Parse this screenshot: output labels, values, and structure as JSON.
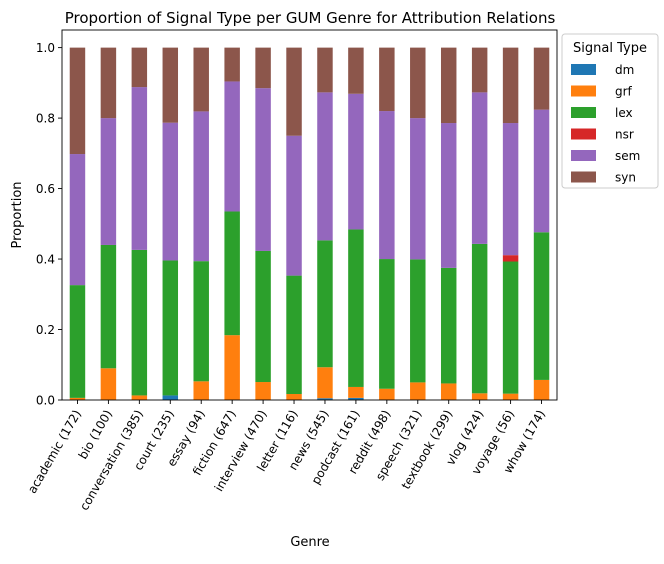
{
  "chart_data": {
    "type": "bar",
    "stacked": true,
    "title": "Proportion of Signal Type per GUM Genre for Attribution Relations",
    "xlabel": "Genre",
    "ylabel": "Proportion",
    "ylim": [
      0,
      1.05
    ],
    "yticks": [
      0.0,
      0.2,
      0.4,
      0.6,
      0.8,
      1.0
    ],
    "ytick_labels": [
      "0.0",
      "0.2",
      "0.4",
      "0.6",
      "0.8",
      "1.0"
    ],
    "grid": false,
    "legend_title": "Signal Type",
    "legend_position": "outside-top-right",
    "categories": [
      "academic (172)",
      "bio (100)",
      "conversation (385)",
      "court (235)",
      "essay (94)",
      "fiction (647)",
      "interview (470)",
      "letter (116)",
      "news (545)",
      "podcast (161)",
      "reddit (498)",
      "speech (321)",
      "textbook (299)",
      "vlog (424)",
      "voyage (56)",
      "whow (174)"
    ],
    "series": [
      {
        "name": "dm",
        "color": "#1f77b4",
        "values": [
          0.0,
          0.0,
          0.0,
          0.013,
          0.0,
          0.0,
          0.0,
          0.0,
          0.005,
          0.006,
          0.0,
          0.0,
          0.0,
          0.0,
          0.0,
          0.0
        ]
      },
      {
        "name": "grf",
        "color": "#ff7f0e",
        "values": [
          0.006,
          0.09,
          0.013,
          0.0,
          0.053,
          0.184,
          0.051,
          0.017,
          0.088,
          0.031,
          0.032,
          0.05,
          0.047,
          0.019,
          0.018,
          0.057
        ]
      },
      {
        "name": "lex",
        "color": "#2ca02c",
        "values": [
          0.32,
          0.35,
          0.413,
          0.383,
          0.341,
          0.351,
          0.372,
          0.336,
          0.36,
          0.447,
          0.368,
          0.349,
          0.328,
          0.424,
          0.375,
          0.419
        ]
      },
      {
        "name": "nsr",
        "color": "#d62728",
        "values": [
          0.0,
          0.0,
          0.0,
          0.0,
          0.0,
          0.0,
          0.0,
          0.0,
          0.0,
          0.0,
          0.0,
          0.0,
          0.0,
          0.0,
          0.018,
          0.0
        ]
      },
      {
        "name": "sem",
        "color": "#9467bd",
        "values": [
          0.372,
          0.36,
          0.462,
          0.391,
          0.425,
          0.369,
          0.462,
          0.397,
          0.42,
          0.385,
          0.42,
          0.401,
          0.411,
          0.43,
          0.375,
          0.348
        ]
      },
      {
        "name": "syn",
        "color": "#8c564b",
        "values": [
          0.302,
          0.2,
          0.112,
          0.213,
          0.181,
          0.096,
          0.115,
          0.25,
          0.127,
          0.131,
          0.18,
          0.2,
          0.214,
          0.127,
          0.214,
          0.176
        ]
      }
    ]
  }
}
